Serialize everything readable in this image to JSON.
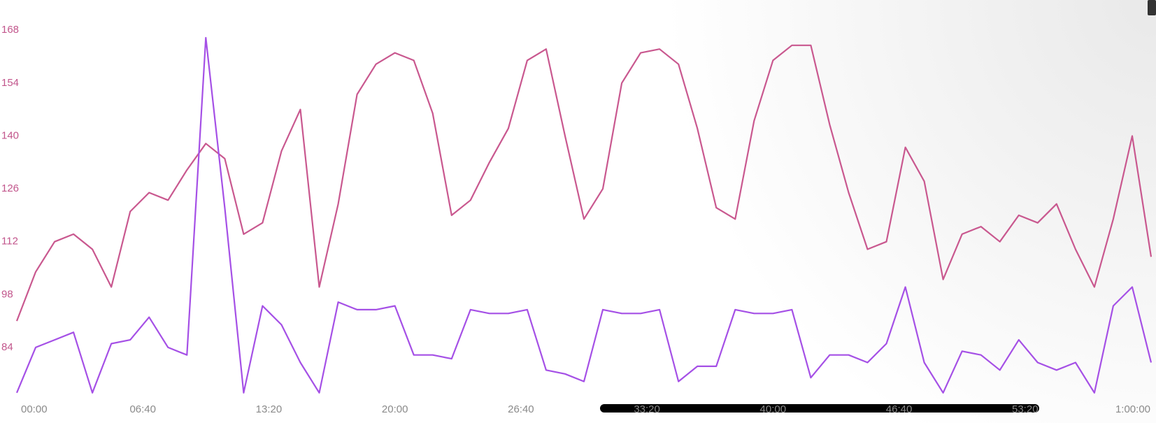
{
  "chart_data": {
    "type": "line",
    "x": [
      0,
      60,
      120,
      180,
      240,
      300,
      360,
      420,
      480,
      540,
      600,
      660,
      720,
      780,
      840,
      900,
      960,
      1020,
      1080,
      1140,
      1200,
      1260,
      1320,
      1380,
      1440,
      1500,
      1560,
      1620,
      1680,
      1740,
      1800,
      1860,
      1920,
      1980,
      2040,
      2100,
      2160,
      2220,
      2280,
      2340,
      2400,
      2460,
      2520,
      2580,
      2640,
      2700,
      2760,
      2820,
      2880,
      2940,
      3000,
      3060,
      3120,
      3180,
      3240,
      3300,
      3360,
      3420,
      3480,
      3540,
      3600
    ],
    "series": [
      {
        "color": "#c9588f",
        "values": [
          91,
          104,
          112,
          114,
          110,
          100,
          120,
          125,
          123,
          131,
          138,
          134,
          114,
          117,
          136,
          147,
          100,
          122,
          151,
          159,
          162,
          160,
          146,
          119,
          123,
          133,
          142,
          160,
          163,
          140,
          118,
          126,
          154,
          162,
          163,
          159,
          142,
          121,
          118,
          144,
          160,
          164,
          164,
          143,
          125,
          110,
          112,
          137,
          128,
          102,
          114,
          116,
          112,
          119,
          117,
          122,
          110,
          100,
          118,
          140,
          108
        ]
      },
      {
        "color": "#a550e6",
        "values": [
          72,
          84,
          86,
          88,
          72,
          85,
          86,
          92,
          84,
          82,
          166,
          121,
          72,
          95,
          90,
          80,
          72,
          96,
          94,
          94,
          95,
          82,
          82,
          81,
          94,
          93,
          93,
          94,
          78,
          77,
          75,
          94,
          93,
          93,
          94,
          75,
          79,
          79,
          94,
          93,
          93,
          94,
          76,
          82,
          82,
          80,
          85,
          100,
          80,
          72,
          83,
          82,
          78,
          86,
          80,
          78,
          80,
          72,
          95,
          100,
          80
        ]
      }
    ],
    "xlim": [
      0,
      3600
    ],
    "ylim": [
      71.4,
      176
    ],
    "xticks": [
      {
        "value": 0,
        "label": "00:00"
      },
      {
        "value": 400,
        "label": "06:40"
      },
      {
        "value": 800,
        "label": "13:20"
      },
      {
        "value": 1200,
        "label": "20:00"
      },
      {
        "value": 1600,
        "label": "26:40"
      },
      {
        "value": 2000,
        "label": "33:20"
      },
      {
        "value": 2400,
        "label": "40:00"
      },
      {
        "value": 2800,
        "label": "46:40"
      },
      {
        "value": 3200,
        "label": "53:20"
      },
      {
        "value": 3600,
        "label": "1:00:00"
      }
    ],
    "yticks": [
      84,
      98,
      112,
      126,
      140,
      154,
      168
    ],
    "grid": false
  }
}
